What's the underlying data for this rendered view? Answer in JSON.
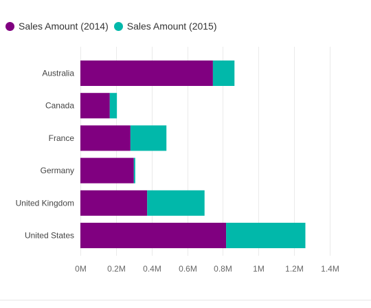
{
  "legend": {
    "items": [
      {
        "label": "Sales Amount (2014)",
        "color": "#800080",
        "icon": "circle-marker"
      },
      {
        "label": "Sales Amount (2015)",
        "color": "#01B8AA",
        "icon": "circle-marker"
      }
    ]
  },
  "chart_data": {
    "type": "bar",
    "orientation": "horizontal",
    "stacked": true,
    "categories": [
      "Australia",
      "Canada",
      "France",
      "Germany",
      "United Kingdom",
      "United States"
    ],
    "series": [
      {
        "name": "Sales Amount (2014)",
        "color": "#800080",
        "values": [
          744000,
          165000,
          281000,
          300000,
          375000,
          818000
        ]
      },
      {
        "name": "Sales Amount (2015)",
        "color": "#01B8AA",
        "values": [
          121000,
          40000,
          202000,
          8000,
          322000,
          445000
        ]
      }
    ],
    "xlim": [
      0,
      1400000
    ],
    "xticks": [
      "0M",
      "0.2M",
      "0.4M",
      "0.6M",
      "0.8M",
      "1M",
      "1.2M",
      "1.4M"
    ],
    "title": "",
    "xlabel": "",
    "ylabel": "",
    "grid": "vertical",
    "legend_position": "top-left"
  }
}
